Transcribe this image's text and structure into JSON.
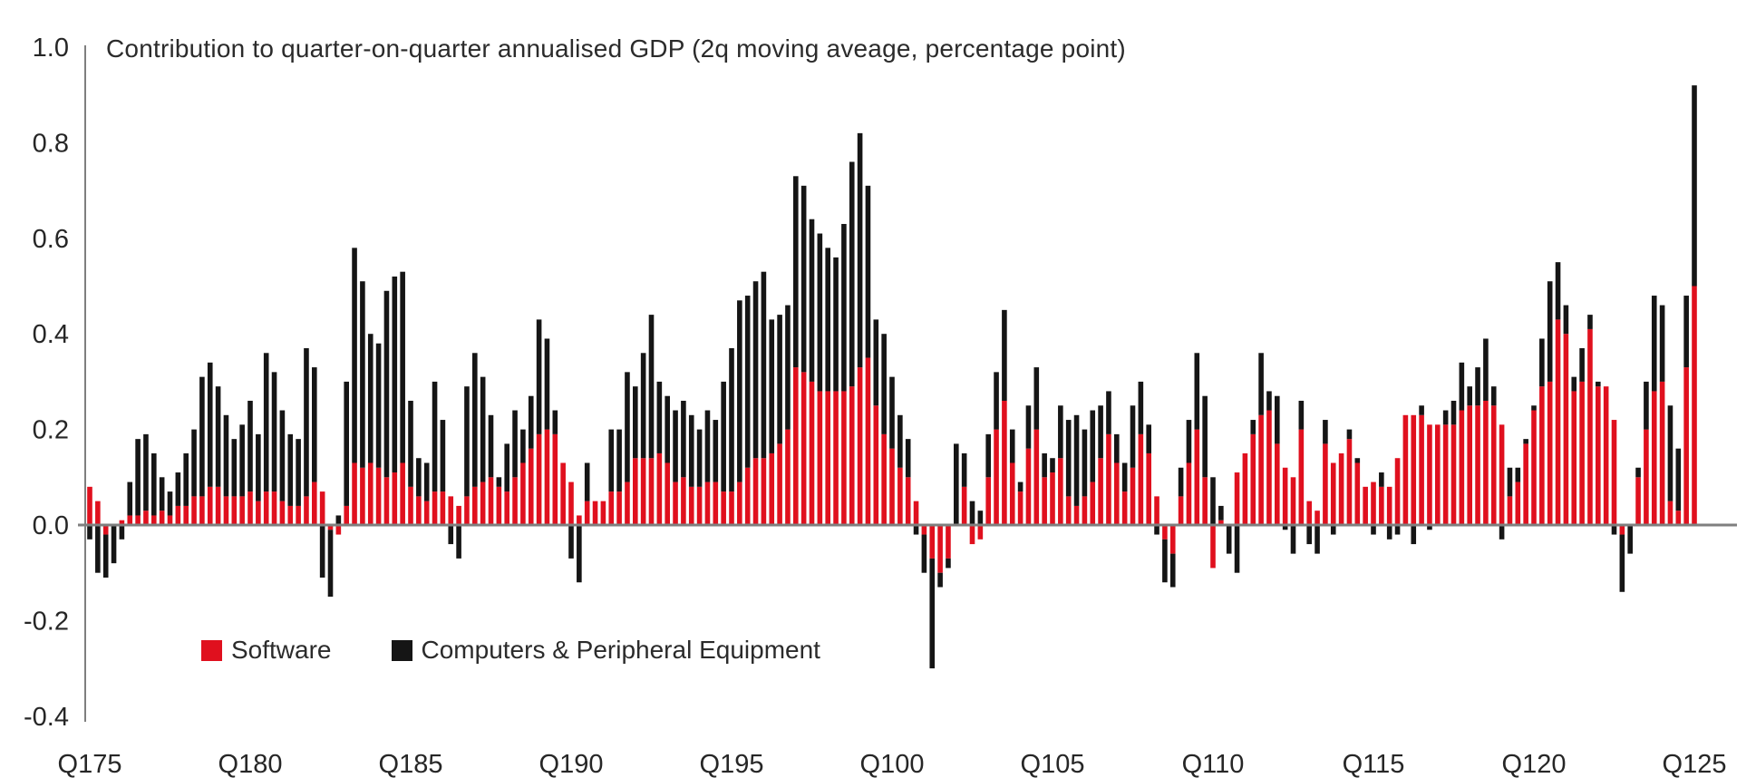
{
  "title": "Contribution to quarter-on-quarter annualised GDP (2q moving aveage, percentage point)",
  "legend": [
    {
      "label": "Software",
      "color": "#e0101e"
    },
    {
      "label": "Computers & Peripheral Equipment",
      "color": "#151515"
    }
  ],
  "chart_data": {
    "type": "bar",
    "stacked": true,
    "title": "Contribution to quarter-on-quarter annualised GDP (2q moving aveage, percentage point)",
    "start_quarter": "1975Q1",
    "end_quarter": "2025Q1",
    "frequency": "quarterly",
    "ylim": [
      -0.4,
      1.0
    ],
    "y_ticks": [
      1.0,
      0.8,
      0.6,
      0.4,
      0.2,
      0.0,
      -0.2,
      -0.4
    ],
    "y_tick_labels": [
      "1.0",
      "0.8",
      "0.6",
      "0.4",
      "0.2",
      "0.0",
      "-0.2",
      "-0.4"
    ],
    "x_tick_labels": [
      "Q175",
      "Q180",
      "Q185",
      "Q190",
      "Q195",
      "Q100",
      "Q105",
      "Q110",
      "Q115",
      "Q120",
      "Q125"
    ],
    "x_tick_every_n_quarters": 20,
    "grid": false,
    "legend_position": "bottom-left-inside",
    "axis_color": "#7f7f7f",
    "text_color": "#262626",
    "series": [
      {
        "name": "Software",
        "color": "#e0101e",
        "values": [
          0.08,
          0.05,
          -0.02,
          0.0,
          0.01,
          0.02,
          0.02,
          0.03,
          0.02,
          0.03,
          0.02,
          0.04,
          0.04,
          0.06,
          0.06,
          0.08,
          0.08,
          0.06,
          0.06,
          0.06,
          0.07,
          0.05,
          0.07,
          0.07,
          0.05,
          0.04,
          0.04,
          0.06,
          0.09,
          0.07,
          -0.01,
          -0.02,
          0.04,
          0.13,
          0.12,
          0.13,
          0.12,
          0.1,
          0.11,
          0.13,
          0.08,
          0.06,
          0.05,
          0.07,
          0.07,
          0.06,
          0.04,
          0.06,
          0.08,
          0.09,
          0.1,
          0.08,
          0.07,
          0.1,
          0.13,
          0.16,
          0.19,
          0.2,
          0.19,
          0.13,
          0.09,
          0.02,
          0.05,
          0.05,
          0.05,
          0.07,
          0.07,
          0.09,
          0.14,
          0.14,
          0.14,
          0.15,
          0.13,
          0.09,
          0.1,
          0.08,
          0.08,
          0.09,
          0.09,
          0.07,
          0.07,
          0.09,
          0.12,
          0.14,
          0.14,
          0.15,
          0.17,
          0.2,
          0.33,
          0.32,
          0.3,
          0.28,
          0.28,
          0.28,
          0.28,
          0.29,
          0.33,
          0.35,
          0.25,
          0.19,
          0.16,
          0.12,
          0.1,
          0.05,
          -0.02,
          -0.07,
          -0.1,
          -0.07,
          0.0,
          0.08,
          -0.04,
          -0.03,
          0.1,
          0.2,
          0.26,
          0.13,
          0.07,
          0.16,
          0.2,
          0.1,
          0.11,
          0.14,
          0.06,
          0.04,
          0.06,
          0.09,
          0.14,
          0.19,
          0.13,
          0.07,
          0.12,
          0.19,
          0.15,
          0.06,
          -0.03,
          -0.06,
          0.06,
          0.13,
          0.2,
          0.1,
          -0.09,
          0.01,
          0.0,
          0.11,
          0.15,
          0.19,
          0.23,
          0.24,
          0.17,
          0.12,
          0.1,
          0.2,
          0.05,
          0.03,
          0.17,
          0.13,
          0.15,
          0.18,
          0.13,
          0.08,
          0.09,
          0.08,
          0.08,
          0.14,
          0.23,
          0.23,
          0.23,
          0.21,
          0.21,
          0.21,
          0.21,
          0.24,
          0.25,
          0.25,
          0.26,
          0.25,
          0.21,
          0.06,
          0.09,
          0.17,
          0.24,
          0.29,
          0.3,
          0.43,
          0.4,
          0.28,
          0.3,
          0.41,
          0.29,
          0.29,
          0.22,
          -0.02,
          0.0,
          0.1,
          0.2,
          0.28,
          0.3,
          0.05,
          0.03,
          0.33,
          0.5
        ]
      },
      {
        "name": "Computers & Peripheral Equipment",
        "color": "#151515",
        "values": [
          -0.03,
          -0.1,
          -0.09,
          -0.08,
          -0.03,
          0.07,
          0.16,
          0.16,
          0.13,
          0.07,
          0.05,
          0.07,
          0.11,
          0.14,
          0.25,
          0.26,
          0.21,
          0.17,
          0.12,
          0.15,
          0.19,
          0.14,
          0.29,
          0.25,
          0.19,
          0.15,
          0.14,
          0.31,
          0.24,
          -0.11,
          -0.14,
          0.02,
          0.26,
          0.45,
          0.39,
          0.27,
          0.26,
          0.39,
          0.41,
          0.4,
          0.18,
          0.08,
          0.08,
          0.23,
          0.15,
          -0.04,
          -0.07,
          0.23,
          0.28,
          0.22,
          0.13,
          0.02,
          0.1,
          0.14,
          0.07,
          0.11,
          0.24,
          0.19,
          0.05,
          0.0,
          -0.07,
          -0.12,
          0.08,
          0.0,
          0.0,
          0.13,
          0.13,
          0.23,
          0.15,
          0.22,
          0.3,
          0.15,
          0.14,
          0.15,
          0.16,
          0.15,
          0.12,
          0.15,
          0.13,
          0.23,
          0.3,
          0.38,
          0.36,
          0.37,
          0.39,
          0.28,
          0.27,
          0.26,
          0.4,
          0.39,
          0.34,
          0.33,
          0.3,
          0.28,
          0.35,
          0.47,
          0.49,
          0.36,
          0.18,
          0.21,
          0.15,
          0.11,
          0.08,
          -0.02,
          -0.08,
          -0.23,
          -0.03,
          -0.02,
          0.17,
          0.07,
          0.05,
          0.03,
          0.09,
          0.12,
          0.19,
          0.07,
          0.02,
          0.09,
          0.13,
          0.05,
          0.03,
          0.11,
          0.16,
          0.19,
          0.14,
          0.15,
          0.11,
          0.09,
          0.06,
          0.06,
          0.13,
          0.11,
          0.06,
          -0.02,
          -0.09,
          -0.07,
          0.06,
          0.09,
          0.16,
          0.17,
          0.1,
          0.03,
          -0.06,
          -0.1,
          0.0,
          0.03,
          0.13,
          0.04,
          0.1,
          -0.01,
          -0.06,
          0.06,
          -0.04,
          -0.06,
          0.05,
          -0.02,
          0.0,
          0.02,
          0.01,
          0.0,
          -0.02,
          0.03,
          -0.03,
          -0.02,
          0.0,
          -0.04,
          0.02,
          -0.01,
          0.0,
          0.03,
          0.05,
          0.1,
          0.04,
          0.08,
          0.13,
          0.04,
          -0.03,
          0.06,
          0.03,
          0.01,
          0.01,
          0.1,
          0.21,
          0.12,
          0.06,
          0.03,
          0.07,
          0.03,
          0.01,
          0.0,
          -0.02,
          -0.12,
          -0.06,
          0.02,
          0.1,
          0.2,
          0.16,
          0.2,
          0.13,
          0.15,
          0.42
        ]
      }
    ]
  }
}
